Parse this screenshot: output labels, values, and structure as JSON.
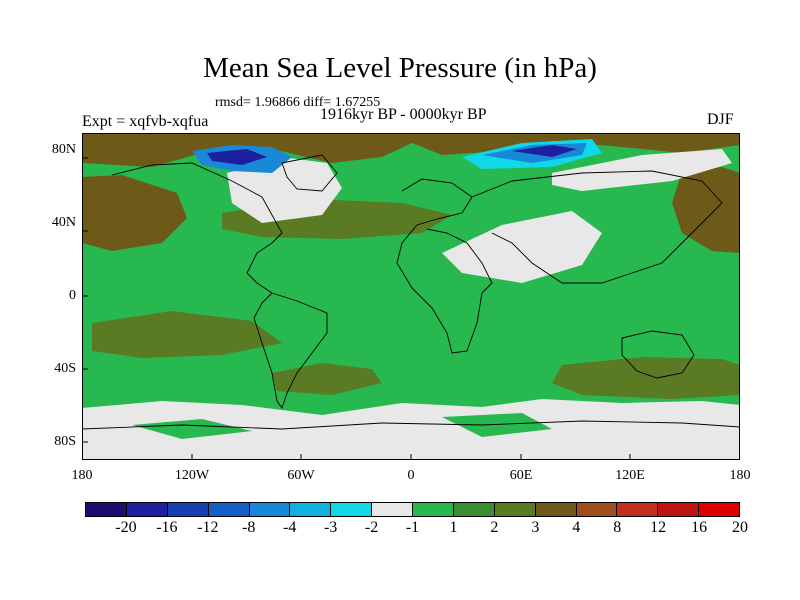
{
  "title": "Mean Sea Level Pressure (in hPa)",
  "stats": "rmsd= 1.96866  diff= 1.67255",
  "expt": "Expt = xqfvb-xqfua",
  "period": "1916kyr BP - 0000kyr BP",
  "season": "DJF",
  "lat_labels": [
    "80N",
    "40N",
    "0",
    "40S",
    "80S"
  ],
  "lon_labels": [
    "180",
    "120W",
    "60W",
    "0",
    "60E",
    "120E",
    "180"
  ],
  "colorbar": {
    "colors": [
      "#1a0f6e",
      "#1e1ea0",
      "#1440b4",
      "#1460c8",
      "#1888d8",
      "#10b0e0",
      "#10d8e8",
      "#e8e8e8",
      "#28b850",
      "#3c8c32",
      "#5a7a24",
      "#6e5a18",
      "#a0501e",
      "#c0321e",
      "#c01414",
      "#e00000"
    ],
    "labels": [
      "-20",
      "-16",
      "-12",
      "-8",
      "-4",
      "-3",
      "-2",
      "-1",
      "1",
      "2",
      "3",
      "4",
      "8",
      "12",
      "16",
      "20"
    ]
  },
  "map_colors": {
    "ocean_base": "#28b850",
    "light": "#e8e8e8",
    "olive": "#5a7a24",
    "brown": "#6e5a18",
    "dark_blue": "#1e1ea0",
    "mid_blue": "#1888d8",
    "cyan": "#10d8e8",
    "coast": "#000000"
  }
}
